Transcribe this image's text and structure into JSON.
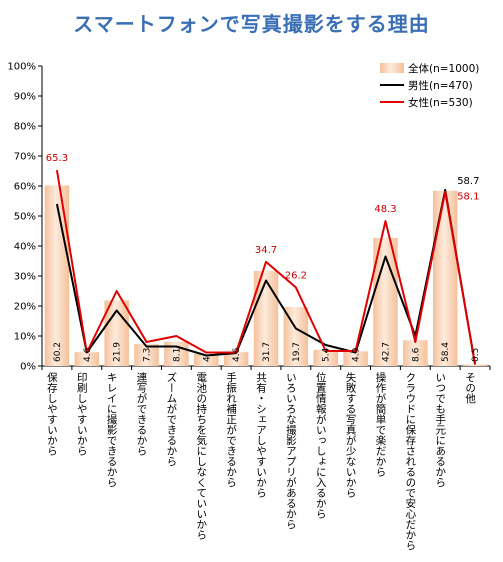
{
  "title": "スマートフォンで写真撮影をする理由",
  "chart_data": {
    "type": "bar",
    "categories": [
      "保存しやすいから",
      "印刷しやすいから",
      "キレイに撮影できるから",
      "連写ができるから",
      "ズームができるから",
      "電池の持ちを気にしなくていいから",
      "手振れ補正ができるから",
      "共有・シェアしやすいから",
      "いろいろな撮影アプリがあるから",
      "位置情報がいっしょに入るから",
      "失敗する写真が少ないから",
      "操作が簡単で楽だから",
      "クラウドに保存されるので安心だから",
      "いつでも手元にあるから",
      "その他"
    ],
    "series": [
      {
        "name": "全体(n=1000)",
        "kind": "bar",
        "color": "#f4c9a6",
        "values": [
          60.2,
          4.6,
          21.9,
          7.3,
          8.1,
          4.0,
          4.6,
          31.7,
          19.7,
          5.4,
          4.9,
          42.7,
          8.6,
          58.4,
          0.5
        ],
        "labels": [
          "60.2",
          "4.6",
          "21.9",
          "7.3",
          "8.1",
          "4",
          "4.6",
          "31.7",
          "19.7",
          "5.4",
          "4.9",
          "42.7",
          "8.6",
          "58.4",
          "0.5"
        ]
      },
      {
        "name": "男性(n=470)",
        "kind": "line",
        "color": "#000000",
        "values": [
          54.0,
          4.5,
          18.5,
          6.5,
          6.5,
          3.5,
          4.3,
          28.5,
          12.5,
          7.0,
          4.5,
          36.5,
          10.0,
          58.7,
          0.5
        ]
      },
      {
        "name": "女性(n=530)",
        "kind": "line",
        "color": "#e00000",
        "values": [
          65.3,
          4.5,
          25.0,
          8.0,
          10.0,
          4.5,
          4.5,
          34.7,
          26.2,
          5.0,
          5.0,
          48.3,
          8.0,
          58.1,
          0.5
        ]
      }
    ],
    "annotations": [
      {
        "series": "女性(n=530)",
        "index": 0,
        "text": "65.3",
        "color": "#cc0000"
      },
      {
        "series": "女性(n=530)",
        "index": 7,
        "text": "34.7",
        "color": "#cc0000"
      },
      {
        "series": "女性(n=530)",
        "index": 8,
        "text": "26.2",
        "color": "#cc0000"
      },
      {
        "series": "女性(n=530)",
        "index": 11,
        "text": "48.3",
        "color": "#cc0000"
      },
      {
        "series": "男性(n=470)",
        "index": 13,
        "text": "58.7",
        "color": "#000000"
      },
      {
        "series": "女性(n=530)",
        "index": 13,
        "text": "58.1",
        "color": "#cc0000"
      }
    ],
    "yticks": [
      "0%",
      "10%",
      "20%",
      "30%",
      "40%",
      "50%",
      "60%",
      "70%",
      "80%",
      "90%",
      "100%"
    ],
    "ylim": [
      0,
      100
    ],
    "legend_position": "top-right",
    "grid": false
  }
}
